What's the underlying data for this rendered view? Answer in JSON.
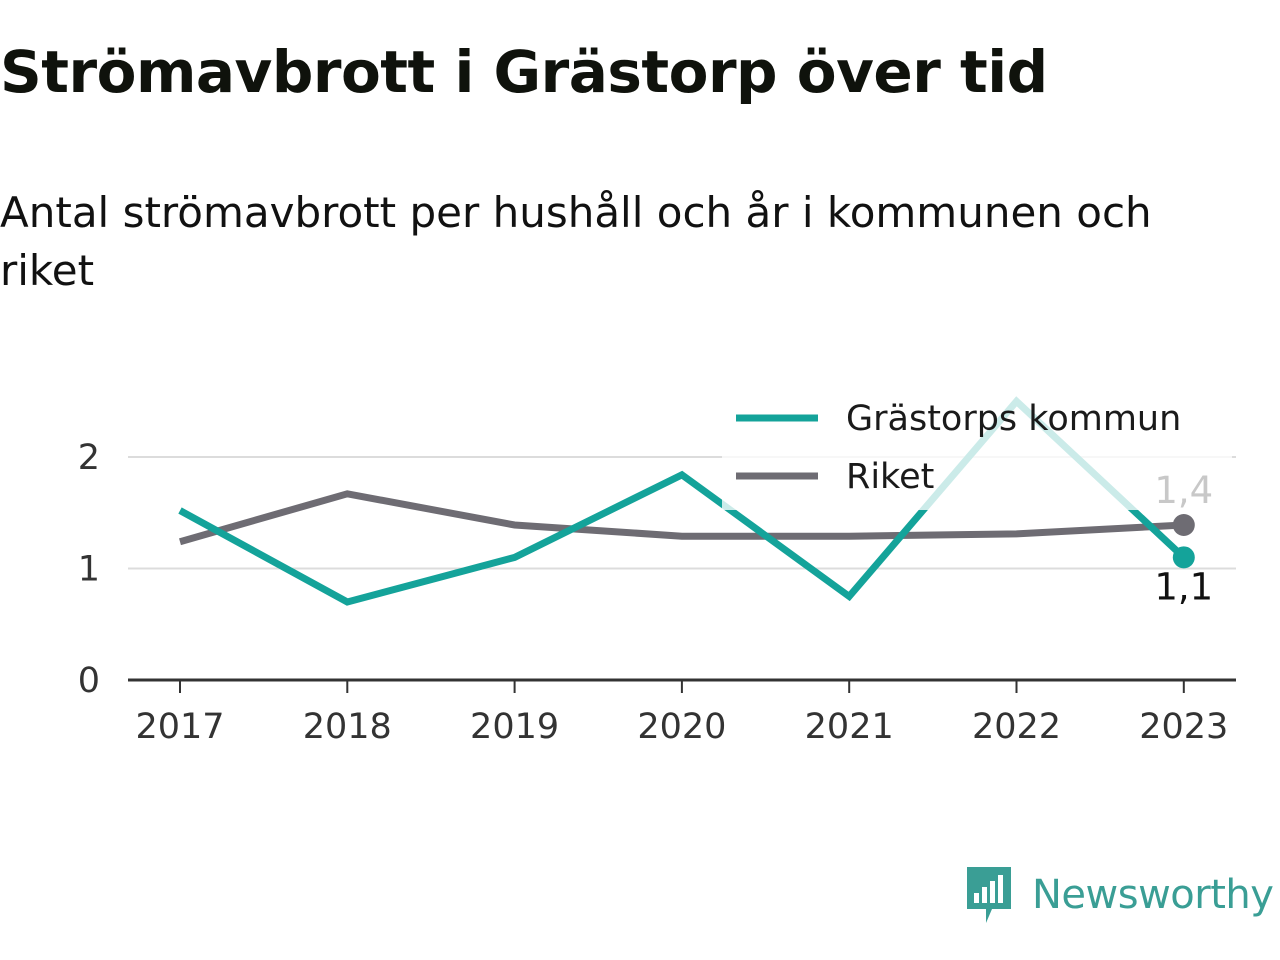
{
  "header": {
    "title": "Strömavbrott i Grästorp över tid",
    "subtitle": "Antal strömavbrott per hushåll och år i kommunen och riket"
  },
  "brand": {
    "name": "Newsworthy",
    "icon": "newsworthy-logo-icon",
    "color": "#3a9e95"
  },
  "chart_data": {
    "type": "line",
    "title": "Strömavbrott i Grästorp över tid",
    "subtitle": "Antal strömavbrott per hushåll och år i kommunen och riket",
    "xlabel": "",
    "ylabel": "",
    "categories": [
      "2017",
      "2018",
      "2019",
      "2020",
      "2021",
      "2022",
      "2023"
    ],
    "y_ticks": [
      0,
      1,
      2
    ],
    "y_tick_labels": [
      "0",
      "1",
      "2"
    ],
    "ylim": [
      0,
      2.2
    ],
    "grid": true,
    "legend_position": "top-right",
    "series": [
      {
        "name": "Grästorps kommun",
        "color": "#14a39a",
        "values": [
          1.52,
          0.7,
          1.1,
          1.84,
          0.75,
          2.5,
          1.1
        ],
        "end_label": "1,1"
      },
      {
        "name": "Riket",
        "color": "#6e6c73",
        "values": [
          1.24,
          1.67,
          1.39,
          1.29,
          1.29,
          1.31,
          1.39
        ],
        "end_label": "1,4"
      }
    ]
  }
}
